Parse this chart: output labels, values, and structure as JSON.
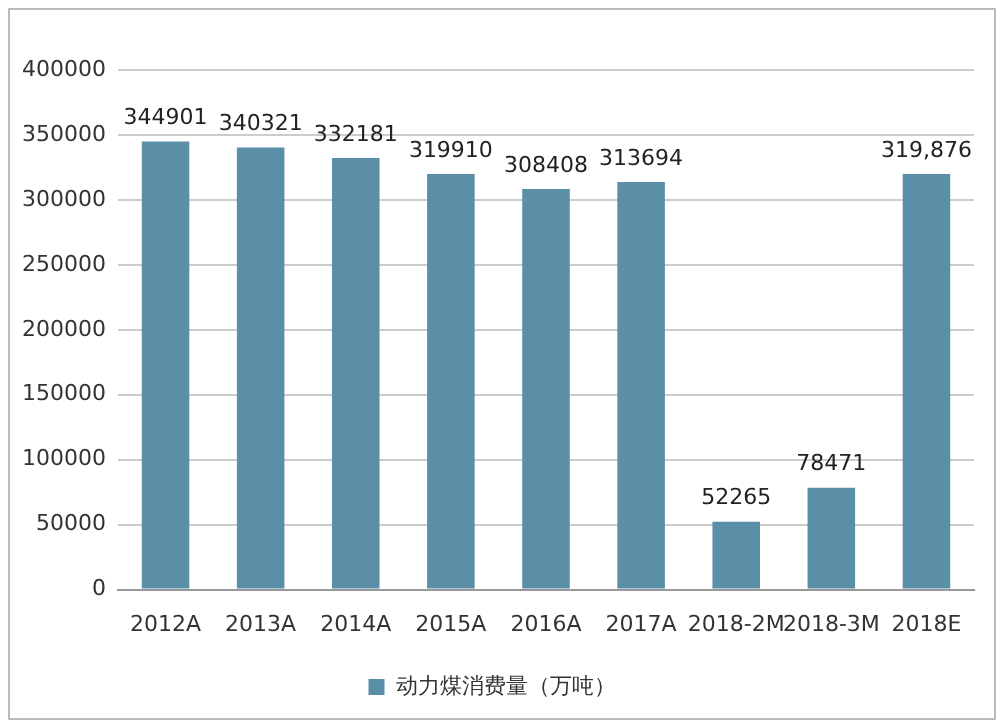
{
  "chart_data": {
    "type": "bar",
    "categories": [
      "2012A",
      "2013A",
      "2014A",
      "2015A",
      "2016A",
      "2017A",
      "2018-2M",
      "2018-3M",
      "2018E"
    ],
    "series": [
      {
        "name": "动力煤消费量（万吨）",
        "color": "#5b8fa8",
        "values": [
          344901,
          340321,
          332181,
          319910,
          308408,
          313694,
          52265,
          78471,
          319876
        ],
        "value_labels": [
          "344901",
          "340321",
          "332181",
          "319910",
          "308408",
          "313694",
          "52265",
          "78471",
          "319,876"
        ]
      }
    ],
    "ylim": [
      0,
      400000
    ],
    "yticks": [
      0,
      50000,
      100000,
      150000,
      200000,
      250000,
      300000,
      350000,
      400000
    ],
    "grid": "y",
    "legend": "bottom"
  }
}
